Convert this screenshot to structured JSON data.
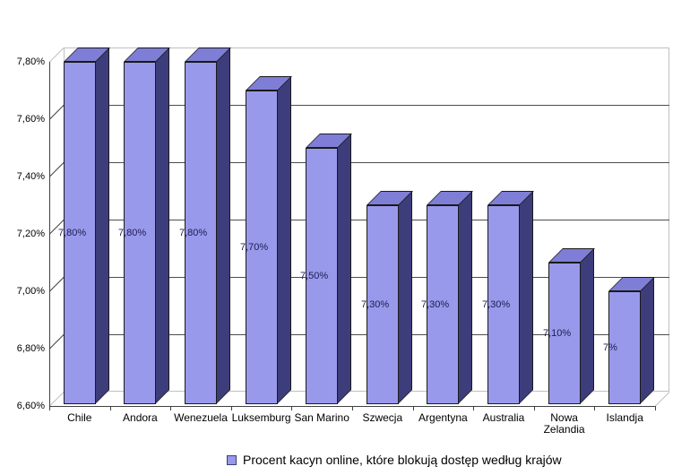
{
  "chart_data": {
    "type": "bar",
    "style": "3d-column",
    "categories": [
      "Chile",
      "Andora",
      "Wenezuela",
      "Luksemburg",
      "San Marino",
      "Szwecja",
      "Argentyna",
      "Australia",
      "Nowa Zelandia",
      "Islandja"
    ],
    "values": [
      7.8,
      7.8,
      7.8,
      7.7,
      7.5,
      7.3,
      7.3,
      7.3,
      7.1,
      7.0
    ],
    "value_labels": [
      "7,80%",
      "7,80%",
      "7,80%",
      "7,70%",
      "7,50%",
      "7,30%",
      "7,30%",
      "7,30%",
      "7,10%",
      "7%"
    ],
    "ylim": [
      6.6,
      7.8
    ],
    "y_tick_values": [
      6.6,
      6.8,
      7.0,
      7.2,
      7.4,
      7.6,
      7.8
    ],
    "y_ticks": [
      "6,60%",
      "6,80%",
      "7,00%",
      "7,20%",
      "7,40%",
      "7,60%",
      "7,80%"
    ],
    "grid": true,
    "legend": {
      "label": "Procent kacyn online, które blokują dostęp według krajów",
      "position": "bottom"
    },
    "colors": {
      "bar_front": "#9999EC",
      "bar_side": "#3D3D7B",
      "bar_top": "#7E7ED6",
      "bar_border": "#1a1a1a",
      "value_label": "#1c1c4f",
      "gridline": "#4d4d4d",
      "wall_edge": "#c0c0c0",
      "axis": "#404040",
      "background": "#ffffff"
    }
  }
}
